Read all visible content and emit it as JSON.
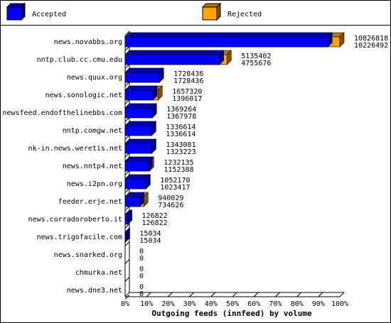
{
  "chart_data": {
    "type": "bar3d",
    "orientation": "horizontal",
    "xlabel": "Outgoing feeds (innfeed) by volume",
    "categories": [
      "news.novabbs.org",
      "nntp.club.cc.cmu.edu",
      "news.quux.org",
      "news.sonologic.net",
      "newsfeed.endofthelinebbs.com",
      "nntp.comgw.net",
      "nk-in.news.weretis.net",
      "news.nntp4.net",
      "news.i2pn.org",
      "feeder.erje.net",
      "news.corradoroberto.it",
      "news.trigofacile.com",
      "news.snarked.org",
      "chmurka.net",
      "news.dne3.net"
    ],
    "series": [
      {
        "name": "Accepted",
        "color": "#0000ff",
        "values": [
          10226492,
          4755676,
          1728436,
          1396017,
          1367978,
          1336614,
          1323223,
          1152388,
          1023417,
          734626,
          126822,
          15034,
          0,
          0,
          0
        ]
      },
      {
        "name": "Rejected",
        "color": "#ffa500",
        "values": [
          10826818,
          5135402,
          1728436,
          1657320,
          1369264,
          1336614,
          1343081,
          1232135,
          1052170,
          940029,
          126822,
          15034,
          0,
          0,
          0
        ]
      }
    ],
    "xlim": [
      0,
      10826818
    ],
    "xticks": [
      {
        "value": 0,
        "label": "0%"
      },
      {
        "value": 1082681.8,
        "label": "10%"
      },
      {
        "value": 2165363.6,
        "label": "20%"
      },
      {
        "value": 3248045.4,
        "label": "30%"
      },
      {
        "value": 4330727.2,
        "label": "40%"
      },
      {
        "value": 5413409,
        "label": "50%"
      },
      {
        "value": 6496090.8,
        "label": "60%"
      },
      {
        "value": 7578772.6,
        "label": "70%"
      },
      {
        "value": 8661454.4,
        "label": "80%"
      },
      {
        "value": 9744136.2,
        "label": "90%"
      },
      {
        "value": 10826818,
        "label": "100%"
      }
    ]
  }
}
